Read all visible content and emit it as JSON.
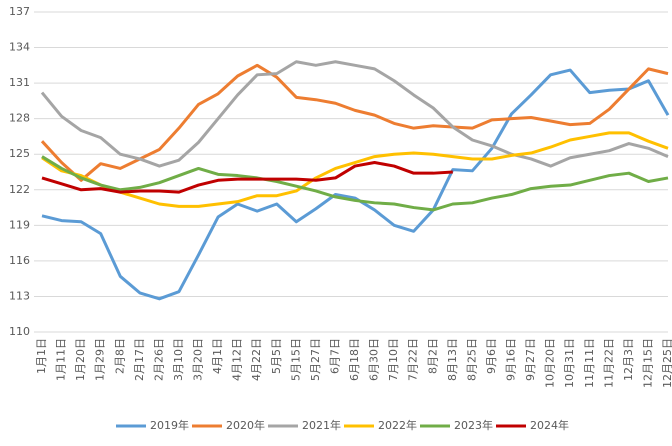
{
  "chart_data": {
    "type": "line",
    "categories": [
      "1月1日",
      "1月11日",
      "1月20日",
      "1月29日",
      "2月8日",
      "2月17日",
      "2月26日",
      "3月10日",
      "3月20日",
      "4月1日",
      "4月12日",
      "4月22日",
      "5月5日",
      "5月15日",
      "5月27日",
      "6月7日",
      "6月18日",
      "6月30日",
      "7月10日",
      "7月22日",
      "8月2日",
      "8月13日",
      "8月25日",
      "9月6日",
      "9月16日",
      "9月27日",
      "10月20日",
      "10月31日",
      "11月11日",
      "11月22日",
      "12月3日",
      "12月15日",
      "12月25日"
    ],
    "series": [
      {
        "name": "2019年",
        "color": "#5b9bd5",
        "values": [
          119.8,
          119.4,
          119.3,
          118.3,
          114.7,
          113.3,
          112.8,
          113.4,
          116.5,
          119.7,
          120.8,
          120.2,
          120.8,
          119.3,
          120.4,
          121.6,
          121.3,
          120.3,
          119.0,
          118.5,
          120.3,
          123.7,
          123.6,
          125.5,
          128.4,
          130.0,
          131.7,
          132.1,
          130.2,
          130.4,
          130.5,
          131.2,
          128.3
        ]
      },
      {
        "name": "2020年",
        "color": "#ed7d31",
        "values": [
          126.1,
          124.3,
          122.8,
          124.2,
          123.8,
          124.6,
          125.4,
          127.2,
          129.2,
          130.1,
          131.6,
          132.5,
          131.5,
          129.8,
          129.6,
          129.3,
          128.7,
          128.3,
          127.6,
          127.2,
          127.4,
          127.3,
          127.2,
          127.9,
          128.0,
          128.1,
          127.8,
          127.5,
          127.6,
          128.8,
          130.5,
          132.2,
          131.8
        ]
      },
      {
        "name": "2021年",
        "color": "#a5a5a5",
        "values": [
          130.2,
          128.2,
          127.0,
          126.4,
          125.0,
          124.6,
          124.0,
          124.5,
          126.0,
          128.0,
          130.0,
          131.7,
          131.8,
          132.8,
          132.5,
          132.8,
          132.5,
          132.2,
          131.2,
          130.0,
          128.9,
          127.3,
          126.2,
          125.7,
          125.0,
          124.6,
          124.0,
          124.7,
          125.0,
          125.3,
          125.9,
          125.5,
          124.8
        ]
      },
      {
        "name": "2022年",
        "color": "#ffc000",
        "values": [
          124.7,
          123.6,
          123.2,
          122.4,
          121.8,
          121.3,
          120.8,
          120.6,
          120.6,
          120.8,
          121.0,
          121.5,
          121.5,
          121.9,
          123.0,
          123.8,
          124.3,
          124.8,
          125.0,
          125.1,
          125.0,
          124.8,
          124.6,
          124.6,
          124.9,
          125.1,
          125.6,
          126.2,
          126.5,
          126.8,
          126.8,
          126.1,
          125.5
        ]
      },
      {
        "name": "2023年",
        "color": "#70ad47",
        "values": [
          124.8,
          123.8,
          123.0,
          122.4,
          122.0,
          122.2,
          122.6,
          123.2,
          123.8,
          123.3,
          123.2,
          123.0,
          122.7,
          122.3,
          121.9,
          121.4,
          121.1,
          120.9,
          120.8,
          120.5,
          120.3,
          120.8,
          120.9,
          121.3,
          121.6,
          122.1,
          122.3,
          122.4,
          122.8,
          123.2,
          123.4,
          122.7,
          123.0
        ]
      },
      {
        "name": "2024年",
        "color": "#c00000",
        "values": [
          123.0,
          122.5,
          122.0,
          122.1,
          121.8,
          121.9,
          121.9,
          121.8,
          122.4,
          122.8,
          122.9,
          122.9,
          122.9,
          122.9,
          122.8,
          123.0,
          124.0,
          124.3,
          124.0,
          123.4,
          123.4,
          123.5,
          null,
          null,
          null,
          null,
          null,
          null,
          null,
          null,
          null,
          null,
          null
        ]
      }
    ],
    "ylim": [
      110,
      137
    ],
    "yticks": [
      110,
      113,
      116,
      119,
      122,
      125,
      128,
      131,
      134,
      137
    ],
    "grid": true,
    "legend": "bottom"
  }
}
